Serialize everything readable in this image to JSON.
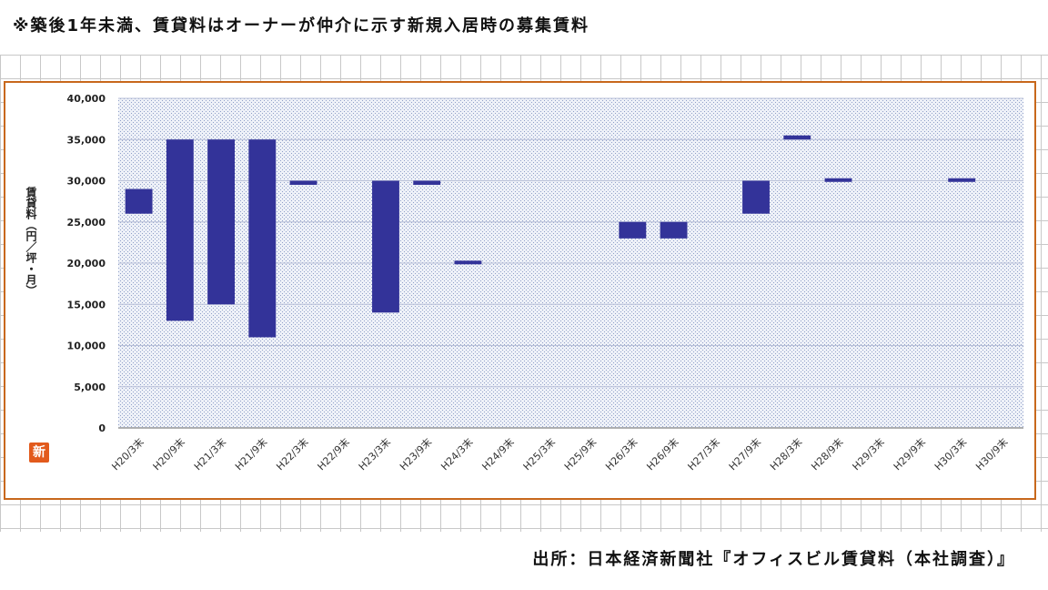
{
  "note": "※築後1年未満、賃貸料はオーナーが仲介に示す新規入居時の募集賃料",
  "source": "出所：日本経済新聞社『オフィスビル賃貸料（本社調査）』",
  "stamp": "新",
  "colors": {
    "bar": "#333399",
    "frame": "#c8681c",
    "plot_bg": "#dde3f2"
  },
  "chart_data": {
    "type": "bar",
    "bar_style": "floating-range",
    "ylabel": "賃貸料（円／坪・月）",
    "ylim": [
      0,
      40000
    ],
    "yticks": [
      0,
      5000,
      10000,
      15000,
      20000,
      25000,
      30000,
      35000,
      40000
    ],
    "ytick_labels": [
      "0",
      "5,000",
      "10,000",
      "15,000",
      "20,000",
      "25,000",
      "30,000",
      "35,000",
      "40,000"
    ],
    "categories": [
      "H20/3末",
      "H20/9末",
      "H21/3末",
      "H21/9末",
      "H22/3末",
      "H22/9末",
      "H23/3末",
      "H23/9末",
      "H24/3末",
      "H24/9末",
      "H25/3末",
      "H25/9末",
      "H26/3末",
      "H26/9末",
      "H27/3末",
      "H27/9末",
      "H28/3末",
      "H28/9末",
      "H29/3末",
      "H29/9末",
      "H30/3末",
      "H30/9末"
    ],
    "ranges": [
      [
        26000,
        29000
      ],
      [
        13000,
        35000
      ],
      [
        15000,
        35000
      ],
      [
        11000,
        35000
      ],
      [
        29500,
        30000
      ],
      null,
      [
        14000,
        30000
      ],
      [
        29500,
        30000
      ],
      [
        20000,
        20300
      ],
      null,
      null,
      null,
      [
        23000,
        25000
      ],
      [
        23000,
        25000
      ],
      null,
      [
        26000,
        30000
      ],
      [
        35000,
        35500
      ],
      [
        30000,
        30300
      ],
      null,
      null,
      [
        30000,
        30300
      ],
      null
    ],
    "grid": true,
    "legend": "none"
  }
}
